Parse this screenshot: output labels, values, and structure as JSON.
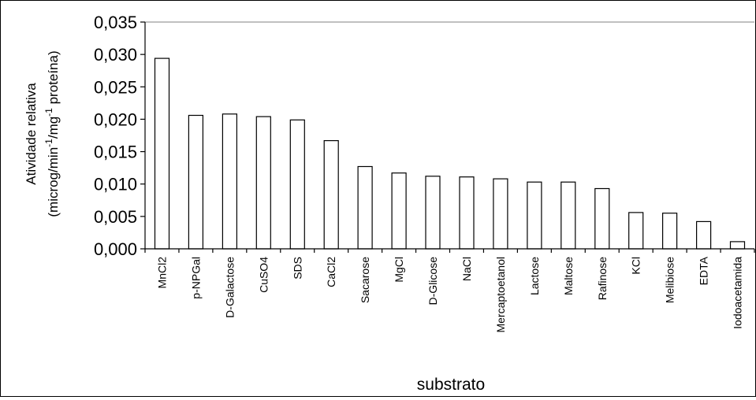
{
  "chart_data": {
    "type": "bar",
    "title": "",
    "xlabel": "substrato",
    "ylabel_line1": "Atividade relativa",
    "ylabel_line2_parts": [
      "(microg/min",
      "-1",
      "/mg",
      "-1",
      " proteína)"
    ],
    "ylim": [
      0,
      0.035
    ],
    "yticks": [
      "0,000",
      "0,005",
      "0,010",
      "0,015",
      "0,020",
      "0,025",
      "0,030",
      "0,035"
    ],
    "categories": [
      "MnCl2",
      "p-NPGal",
      "D-Galactose",
      "CuSO4",
      "SDS",
      "CaCl2",
      "Sacarose",
      "MgCl",
      "D-Glicose",
      "NaCl",
      "Mercaptoetanol",
      "Lactose",
      "Maltose",
      "Rafinose",
      "KCl",
      "Melibiose",
      "EDTA",
      "Iodoacetamida"
    ],
    "values": [
      0.0294,
      0.0206,
      0.0208,
      0.0204,
      0.0199,
      0.0167,
      0.0127,
      0.0117,
      0.0112,
      0.0111,
      0.0108,
      0.0103,
      0.0103,
      0.0093,
      0.0056,
      0.0055,
      0.0042,
      0.0011
    ],
    "grid": false,
    "legend": "none",
    "colors": {
      "bar_fill": "#ffffff",
      "bar_stroke": "#000000",
      "plot_border": "#808080",
      "axis": "#000000"
    }
  }
}
